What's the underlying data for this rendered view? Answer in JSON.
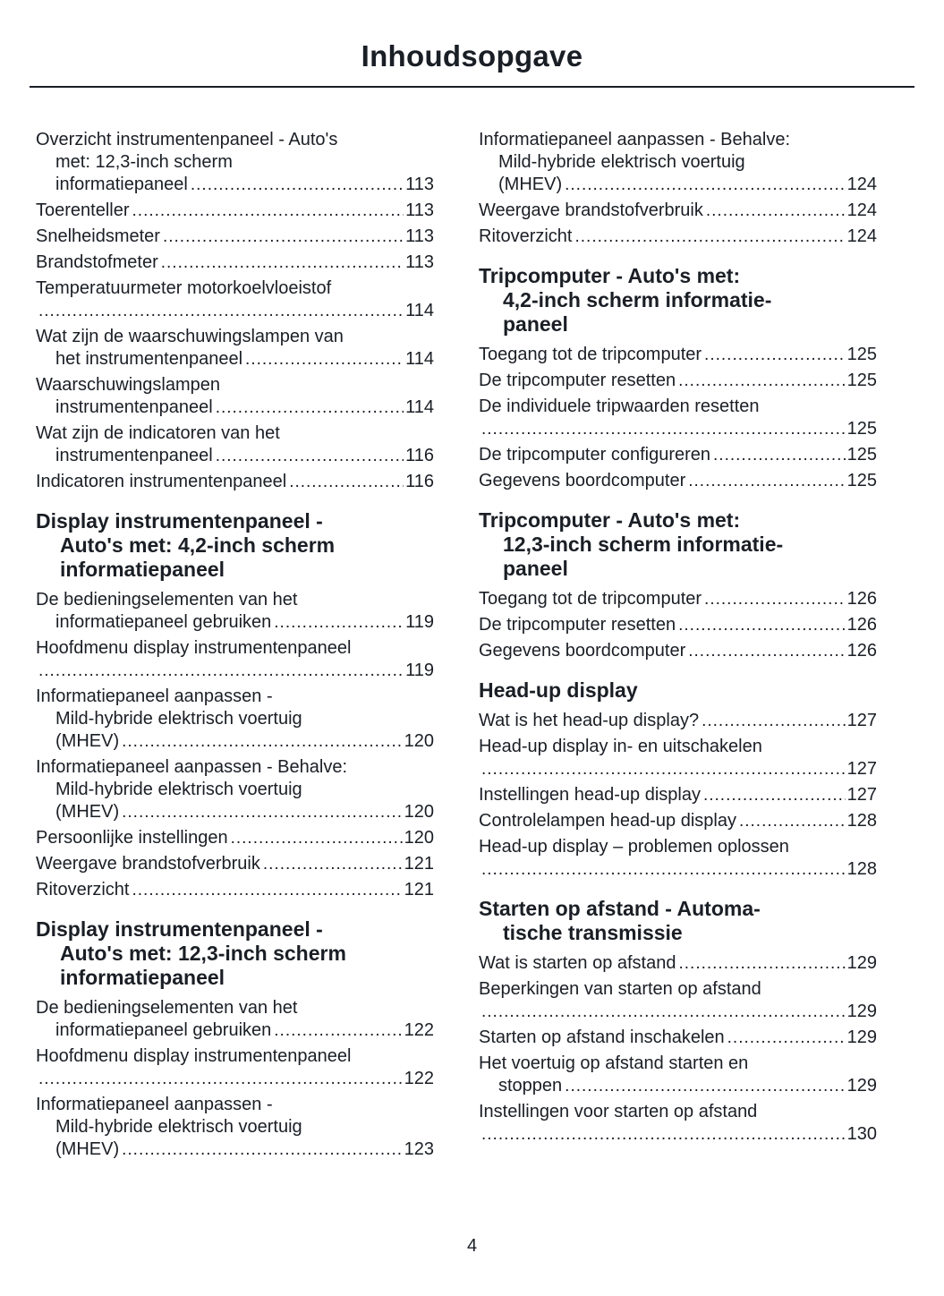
{
  "page": {
    "title": "Inhoudsopgave",
    "page_number": "4",
    "leader_char": "."
  },
  "toc": {
    "columns": [
      {
        "blocks": [
          {
            "type": "entry",
            "lines": [
              "Overzicht instrumentenpaneel - Auto's",
              "met: 12,3-inch scherm",
              "informatiepaneel"
            ],
            "page": "113"
          },
          {
            "type": "entry",
            "lines": [
              "Toerenteller"
            ],
            "page": "113"
          },
          {
            "type": "entry",
            "lines": [
              "Snelheidsmeter"
            ],
            "page": "113"
          },
          {
            "type": "entry",
            "lines": [
              "Brandstofmeter"
            ],
            "page": "113"
          },
          {
            "type": "entry",
            "lines": [
              "Temperatuurmeter motorkoelvloeistof",
              ""
            ],
            "page": "114"
          },
          {
            "type": "entry",
            "lines": [
              "Wat zijn de waarschuwingslampen van",
              "het instrumentenpaneel"
            ],
            "page": "114"
          },
          {
            "type": "entry",
            "lines": [
              "Waarschuwingslampen",
              "instrumentenpaneel"
            ],
            "page": "114"
          },
          {
            "type": "entry",
            "lines": [
              "Wat zijn de indicatoren van het",
              "instrumentenpaneel"
            ],
            "page": "116"
          },
          {
            "type": "entry",
            "lines": [
              "Indicatoren instrumentenpaneel"
            ],
            "page": "116"
          },
          {
            "type": "heading",
            "lines": [
              "Display instrumentenpaneel -",
              "Auto's met: 4,2-inch scherm",
              "informatiepaneel"
            ]
          },
          {
            "type": "entry",
            "lines": [
              "De bedieningselementen van het",
              "informatiepaneel gebruiken"
            ],
            "page": "119"
          },
          {
            "type": "entry",
            "lines": [
              "Hoofdmenu display instrumentenpaneel",
              ""
            ],
            "page": "119"
          },
          {
            "type": "entry",
            "lines": [
              "Informatiepaneel aanpassen -",
              "Mild-hybride elektrisch voertuig",
              "(MHEV)"
            ],
            "page": "120"
          },
          {
            "type": "entry",
            "lines": [
              "Informatiepaneel aanpassen - Behalve:",
              "Mild-hybride elektrisch voertuig",
              "(MHEV)"
            ],
            "page": "120"
          },
          {
            "type": "entry",
            "lines": [
              "Persoonlijke instellingen"
            ],
            "page": "120"
          },
          {
            "type": "entry",
            "lines": [
              "Weergave brandstofverbruik"
            ],
            "page": "121"
          },
          {
            "type": "entry",
            "lines": [
              "Ritoverzicht"
            ],
            "page": "121"
          },
          {
            "type": "heading",
            "lines": [
              "Display instrumentenpaneel -",
              "Auto's met: 12,3-inch scherm",
              "informatiepaneel"
            ]
          },
          {
            "type": "entry",
            "lines": [
              "De bedieningselementen van het",
              "informatiepaneel gebruiken"
            ],
            "page": "122"
          },
          {
            "type": "entry",
            "lines": [
              "Hoofdmenu display instrumentenpaneel",
              ""
            ],
            "page": "122"
          },
          {
            "type": "entry",
            "lines": [
              "Informatiepaneel aanpassen -",
              "Mild-hybride elektrisch voertuig",
              "(MHEV)"
            ],
            "page": "123"
          }
        ]
      },
      {
        "blocks": [
          {
            "type": "entry",
            "lines": [
              "Informatiepaneel aanpassen - Behalve:",
              "Mild-hybride elektrisch voertuig",
              "(MHEV)"
            ],
            "page": "124"
          },
          {
            "type": "entry",
            "lines": [
              "Weergave brandstofverbruik"
            ],
            "page": "124"
          },
          {
            "type": "entry",
            "lines": [
              "Ritoverzicht"
            ],
            "page": "124"
          },
          {
            "type": "heading",
            "lines": [
              "Tripcomputer - Auto's met:",
              "4,2-inch scherm informatie-",
              "paneel"
            ]
          },
          {
            "type": "entry",
            "lines": [
              "Toegang tot de tripcomputer"
            ],
            "page": "125"
          },
          {
            "type": "entry",
            "lines": [
              "De tripcomputer resetten"
            ],
            "page": "125"
          },
          {
            "type": "entry",
            "lines": [
              "De individuele tripwaarden resetten",
              ""
            ],
            "page": "125"
          },
          {
            "type": "entry",
            "lines": [
              "De tripcomputer configureren"
            ],
            "page": "125"
          },
          {
            "type": "entry",
            "lines": [
              "Gegevens boordcomputer"
            ],
            "page": "125"
          },
          {
            "type": "heading",
            "lines": [
              "Tripcomputer - Auto's met:",
              "12,3-inch scherm informatie-",
              "paneel"
            ]
          },
          {
            "type": "entry",
            "lines": [
              "Toegang tot de tripcomputer"
            ],
            "page": "126"
          },
          {
            "type": "entry",
            "lines": [
              "De tripcomputer resetten"
            ],
            "page": "126"
          },
          {
            "type": "entry",
            "lines": [
              "Gegevens boordcomputer"
            ],
            "page": "126"
          },
          {
            "type": "heading",
            "lines": [
              "Head-up display"
            ]
          },
          {
            "type": "entry",
            "lines": [
              "Wat is het head-up display?"
            ],
            "page": "127"
          },
          {
            "type": "entry",
            "lines": [
              "Head-up display in- en uitschakelen",
              ""
            ],
            "page": "127"
          },
          {
            "type": "entry",
            "lines": [
              "Instellingen head-up display"
            ],
            "page": "127"
          },
          {
            "type": "entry",
            "lines": [
              "Controlelampen head-up display"
            ],
            "page": "128"
          },
          {
            "type": "entry",
            "lines": [
              "Head-up display – problemen oplossen",
              ""
            ],
            "page": "128"
          },
          {
            "type": "heading",
            "lines": [
              "Starten op afstand - Automa-",
              "tische transmissie"
            ]
          },
          {
            "type": "entry",
            "lines": [
              "Wat is starten op afstand"
            ],
            "page": "129"
          },
          {
            "type": "entry",
            "lines": [
              "Beperkingen van starten op afstand",
              ""
            ],
            "page": "129"
          },
          {
            "type": "entry",
            "lines": [
              "Starten op afstand inschakelen"
            ],
            "page": "129"
          },
          {
            "type": "entry",
            "lines": [
              "Het voertuig op afstand starten en",
              "stoppen"
            ],
            "page": "129"
          },
          {
            "type": "entry",
            "lines": [
              "Instellingen voor starten op afstand",
              ""
            ],
            "page": "130"
          }
        ]
      }
    ]
  }
}
